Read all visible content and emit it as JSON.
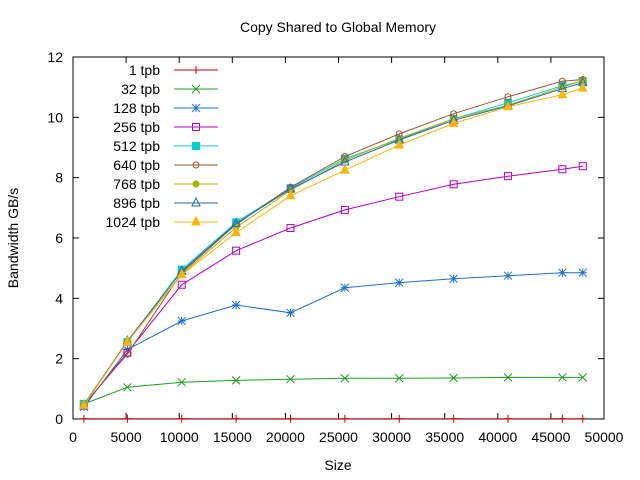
{
  "chart_data": {
    "type": "line",
    "title": "Copy Shared to Global Memory",
    "xlabel": "Size",
    "ylabel": "Bandwidth GB/s",
    "xlim": [
      0,
      50000
    ],
    "ylim": [
      0,
      12
    ],
    "xticks": [
      0,
      5000,
      10000,
      15000,
      20000,
      25000,
      30000,
      35000,
      40000,
      45000,
      50000
    ],
    "yticks": [
      0,
      2,
      4,
      6,
      8,
      10,
      12
    ],
    "grid": false,
    "legend_position": "top-left",
    "x": [
      1024,
      5120,
      10240,
      15360,
      20480,
      25600,
      30720,
      35840,
      40960,
      46080,
      48000
    ],
    "series": [
      {
        "name": "1 tpb",
        "color": "#cc0000",
        "marker": "plus",
        "values": [
          0.01,
          0.01,
          0.01,
          0.01,
          0.01,
          0.01,
          0.01,
          0.01,
          0.01,
          0.01,
          0.01
        ]
      },
      {
        "name": "32 tpb",
        "color": "#1e9e1e",
        "marker": "x",
        "values": [
          0.5,
          1.05,
          1.22,
          1.28,
          1.32,
          1.35,
          1.35,
          1.36,
          1.38,
          1.38,
          1.38
        ]
      },
      {
        "name": "128 tpb",
        "color": "#1e6fd0",
        "marker": "star",
        "values": [
          0.4,
          2.3,
          3.25,
          3.78,
          3.52,
          4.35,
          4.52,
          4.65,
          4.75,
          4.85,
          4.85
        ]
      },
      {
        "name": "256 tpb",
        "color": "#b000c8",
        "marker": "square-open",
        "values": [
          0.45,
          2.2,
          4.45,
          5.58,
          6.33,
          6.93,
          7.37,
          7.78,
          8.05,
          8.28,
          8.38
        ]
      },
      {
        "name": "512 tpb",
        "color": "#00d0d0",
        "marker": "square-filled",
        "values": [
          0.5,
          2.55,
          4.95,
          6.52,
          7.65,
          8.63,
          9.27,
          9.95,
          10.48,
          11.05,
          11.2
        ]
      },
      {
        "name": "640 tpb",
        "color": "#a0522d",
        "marker": "circle-open",
        "values": [
          0.48,
          2.15,
          4.85,
          6.45,
          7.68,
          8.7,
          9.45,
          10.12,
          10.68,
          11.2,
          11.25
        ]
      },
      {
        "name": "768 tpb",
        "color": "#b0b000",
        "marker": "circle-filled",
        "values": [
          0.47,
          2.58,
          4.8,
          6.35,
          7.58,
          8.58,
          9.3,
          9.95,
          10.4,
          11.0,
          11.22
        ]
      },
      {
        "name": "896 tpb",
        "color": "#2a6ab8",
        "marker": "triangle-open",
        "values": [
          0.46,
          2.58,
          4.9,
          6.48,
          7.62,
          8.52,
          9.25,
          9.9,
          10.38,
          10.95,
          11.15
        ]
      },
      {
        "name": "1024 tpb",
        "color": "#ffb400",
        "marker": "triangle-filled",
        "values": [
          0.45,
          2.55,
          4.78,
          6.18,
          7.4,
          8.25,
          9.08,
          9.8,
          10.35,
          10.75,
          10.97
        ]
      }
    ]
  }
}
